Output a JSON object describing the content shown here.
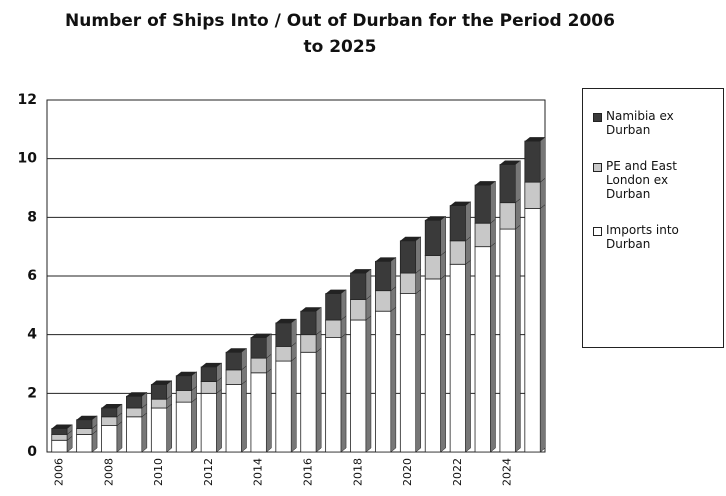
{
  "chart_data": {
    "type": "stacked_bar",
    "title": "Number of Ships Into / Out of Durban for the Period 2006 to 2025",
    "categories": [
      "2006",
      null,
      "2008",
      null,
      "2010",
      null,
      "2012",
      null,
      "2014",
      null,
      "2016",
      null,
      "2018",
      null,
      "2020",
      null,
      "2022",
      null,
      "2024",
      null
    ],
    "series": [
      {
        "name": "Imports into Durban",
        "color": "#ffffff",
        "values": [
          0.4,
          0.6,
          0.9,
          1.2,
          1.5,
          1.7,
          2.0,
          2.3,
          2.7,
          3.1,
          3.4,
          3.9,
          4.5,
          4.8,
          5.4,
          5.9,
          6.4,
          7.0,
          7.6,
          8.3
        ]
      },
      {
        "name": "PE and East London ex Durban",
        "color": "#c8c8c8",
        "values": [
          0.2,
          0.2,
          0.3,
          0.3,
          0.3,
          0.4,
          0.4,
          0.5,
          0.5,
          0.5,
          0.6,
          0.6,
          0.7,
          0.7,
          0.7,
          0.8,
          0.8,
          0.8,
          0.9,
          0.9
        ]
      },
      {
        "name": "Namibia ex Durban",
        "color": "#3a3a3a",
        "values": [
          0.2,
          0.3,
          0.3,
          0.4,
          0.5,
          0.5,
          0.5,
          0.6,
          0.7,
          0.8,
          0.8,
          0.9,
          0.9,
          1.0,
          1.1,
          1.2,
          1.2,
          1.3,
          1.3,
          1.4
        ]
      }
    ],
    "ylim": [
      0,
      12
    ],
    "yticks": [
      0,
      2,
      4,
      6,
      8,
      10,
      12
    ],
    "grid": true
  }
}
